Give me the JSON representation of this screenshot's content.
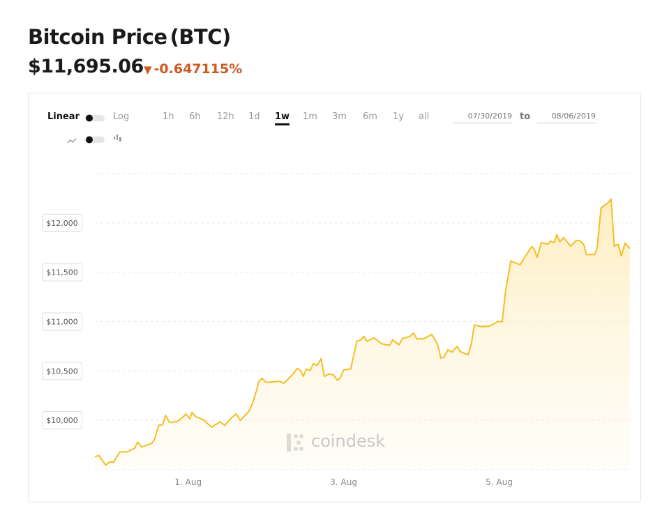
{
  "header": {
    "title": "Bitcoin Price",
    "symbol": "(BTC)",
    "price": "$11,695.06",
    "change": "-0.647115%"
  },
  "controls": {
    "scale": [
      "Linear",
      "Log"
    ],
    "ranges": [
      "1h",
      "6h",
      "12h",
      "1d",
      "1w",
      "1m",
      "3m",
      "6m",
      "1y",
      "all"
    ],
    "selected_range": 4,
    "from": "07/30/2019",
    "to_label": "to",
    "to": "08/06/2019"
  },
  "watermark": "coindesk",
  "chart_data": {
    "type": "line",
    "color": "#f5bd25",
    "grid": true,
    "x": [
      -0.2,
      -0.15,
      -0.06,
      -0.01,
      0.04,
      0.12,
      0.21,
      0.31,
      0.35,
      0.4,
      0.53,
      0.57,
      0.62,
      0.67,
      0.71,
      0.76,
      0.85,
      0.93,
      0.97,
      1.02,
      1.05,
      1.1,
      1.2,
      1.3,
      1.41,
      1.47,
      1.57,
      1.62,
      1.67,
      1.78,
      1.83,
      1.88,
      1.91,
      1.95,
      2.0,
      2.18,
      2.23,
      2.35,
      2.4,
      2.44,
      2.48,
      2.52,
      2.57,
      2.61,
      2.66,
      2.71,
      2.75,
      2.81,
      2.87,
      2.92,
      2.96,
      3.0,
      3.09,
      3.13,
      3.17,
      3.22,
      3.26,
      3.3,
      3.39,
      3.49,
      3.59,
      3.63,
      3.71,
      3.76,
      3.85,
      3.9,
      3.94,
      4.03,
      4.13,
      4.18,
      4.21,
      4.25,
      4.29,
      4.34,
      4.39,
      4.46,
      4.5,
      4.6,
      4.64,
      4.68,
      4.77,
      4.88,
      4.98,
      5.04,
      5.08,
      5.15,
      5.27,
      5.32,
      5.42,
      5.45,
      5.49,
      5.54,
      5.63,
      5.66,
      5.71,
      5.74,
      5.78,
      5.83,
      5.92,
      5.99,
      6.04,
      6.09,
      6.12,
      6.23,
      6.26,
      6.31,
      6.4,
      6.44,
      6.48,
      6.53,
      6.57,
      6.62,
      6.68
    ],
    "values": [
      9630,
      9645,
      9545,
      9580,
      9575,
      9680,
      9680,
      9715,
      9780,
      9730,
      9765,
      9810,
      9950,
      9955,
      10050,
      9980,
      9985,
      10030,
      10065,
      10015,
      10080,
      10035,
      10005,
      9930,
      9985,
      9950,
      10035,
      10065,
      10000,
      10090,
      10175,
      10305,
      10395,
      10425,
      10385,
      10395,
      10375,
      10470,
      10525,
      10510,
      10445,
      10520,
      10505,
      10575,
      10555,
      10625,
      10445,
      10470,
      10460,
      10405,
      10435,
      10510,
      10520,
      10660,
      10800,
      10815,
      10850,
      10800,
      10835,
      10775,
      10760,
      10815,
      10765,
      10830,
      10850,
      10885,
      10825,
      10825,
      10870,
      10810,
      10765,
      10630,
      10640,
      10715,
      10690,
      10750,
      10695,
      10665,
      10765,
      10965,
      10950,
      10955,
      11000,
      11000,
      11300,
      11615,
      11575,
      11640,
      11760,
      11735,
      11650,
      11800,
      11785,
      11815,
      11800,
      11880,
      11810,
      11850,
      11765,
      11820,
      11820,
      11780,
      11680,
      11680,
      11745,
      12150,
      12205,
      12240,
      11765,
      11785,
      11665,
      11795,
      11740
    ],
    "xlim": [
      -0.2,
      6.7
    ],
    "xticks": [
      {
        "value": 1,
        "label": "1. Aug"
      },
      {
        "value": 3,
        "label": "3. Aug"
      },
      {
        "value": 5,
        "label": "5. Aug"
      }
    ],
    "ylim": [
      9500,
      12500
    ],
    "yticks": [
      {
        "value": 10000,
        "label": "$10,000"
      },
      {
        "value": 10500,
        "label": "$10,500"
      },
      {
        "value": 11000,
        "label": "$11,000"
      },
      {
        "value": 11500,
        "label": "$11,500"
      },
      {
        "value": 12000,
        "label": "$12,000"
      }
    ]
  }
}
